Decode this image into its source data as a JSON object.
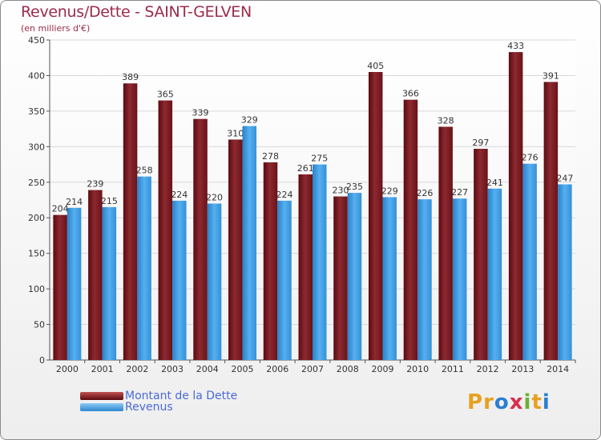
{
  "chart_data": {
    "type": "bar",
    "title": "Revenus/Dette - SAINT-GELVEN",
    "subtitle": "(en milliers d'€)",
    "categories": [
      "2000",
      "2001",
      "2002",
      "2003",
      "2004",
      "2005",
      "2006",
      "2007",
      "2008",
      "2009",
      "2010",
      "2011",
      "2012",
      "2013",
      "2014"
    ],
    "series": [
      {
        "name": "Montant de la Dette",
        "color": "#7a1e22",
        "values": [
          204,
          239,
          389,
          365,
          339,
          310,
          278,
          261,
          230,
          405,
          366,
          328,
          297,
          433,
          391
        ]
      },
      {
        "name": "Revenus",
        "color": "#3d9ae0",
        "values": [
          214,
          215,
          258,
          224,
          220,
          329,
          224,
          275,
          235,
          229,
          226,
          227,
          241,
          276,
          247
        ]
      }
    ],
    "ylim": [
      0,
      450
    ],
    "yticks": [
      0,
      50,
      100,
      150,
      200,
      250,
      300,
      350,
      400,
      450
    ],
    "grid": true,
    "legend": "bottom-left"
  },
  "branding": {
    "letters": [
      "P",
      "r",
      "o",
      "x",
      "i",
      "t",
      "i"
    ],
    "colors": [
      "#e8a020",
      "#e8a020",
      "#2a7fd0",
      "#d83050",
      "#6cb030",
      "#e8a020",
      "#2a7fd0"
    ]
  }
}
